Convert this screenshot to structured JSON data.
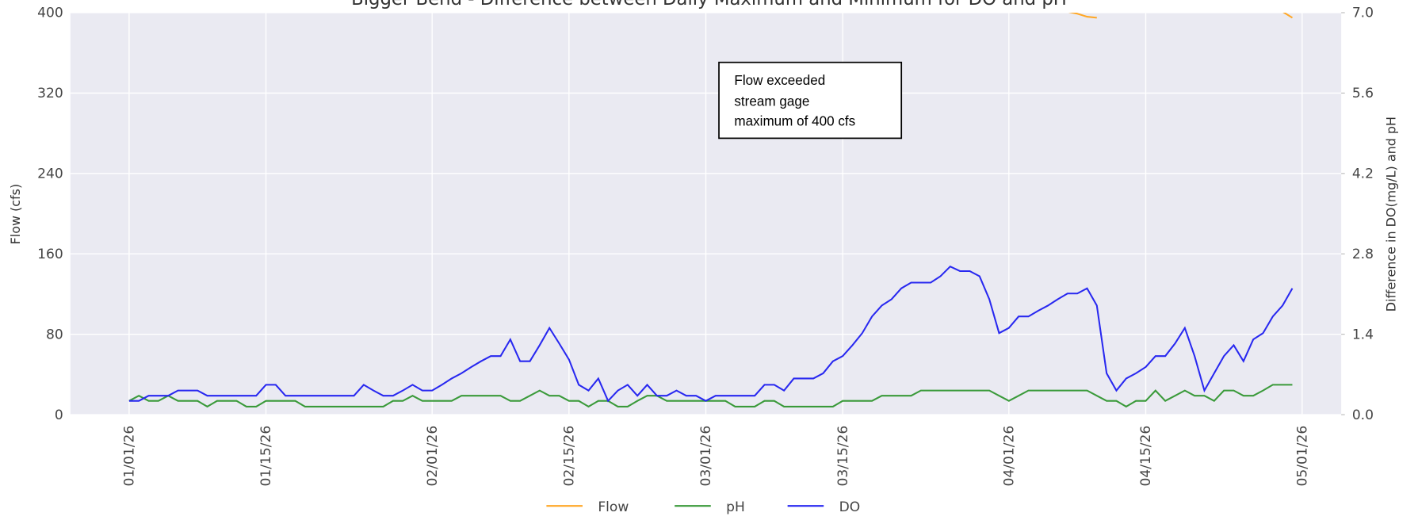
{
  "chart_data": {
    "type": "line",
    "title": "Bigger Bend - Difference between Daily Maximum and Minimum for DO and pH",
    "ylabel": "Flow (cfs)",
    "y2label": "Difference in DO(mg/L) and pH",
    "annotation": [
      "Flow exceeded",
      "stream gage",
      "maximum of 400 cfs"
    ],
    "x": [
      "01/01/26",
      "01/02/26",
      "01/03/26",
      "01/04/26",
      "01/05/26",
      "01/06/26",
      "01/07/26",
      "01/08/26",
      "01/09/26",
      "01/10/26",
      "01/11/26",
      "01/12/26",
      "01/13/26",
      "01/14/26",
      "01/15/26",
      "01/16/26",
      "01/17/26",
      "01/18/26",
      "01/19/26",
      "01/20/26",
      "01/21/26",
      "01/22/26",
      "01/23/26",
      "01/24/26",
      "01/25/26",
      "01/26/26",
      "01/27/26",
      "01/28/26",
      "01/29/26",
      "01/30/26",
      "01/31/26",
      "02/01/26",
      "02/02/26",
      "02/03/26",
      "02/04/26",
      "02/05/26",
      "02/06/26",
      "02/07/26",
      "02/08/26",
      "02/09/26",
      "02/10/26",
      "02/11/26",
      "02/12/26",
      "02/13/26",
      "02/14/26",
      "02/15/26",
      "02/16/26",
      "02/17/26",
      "02/18/26",
      "02/19/26",
      "02/20/26",
      "02/21/26",
      "02/22/26",
      "02/23/26",
      "02/24/26",
      "02/25/26",
      "02/26/26",
      "02/27/26",
      "02/28/26",
      "03/01/26",
      "03/02/26",
      "03/03/26",
      "03/04/26",
      "03/05/26",
      "03/06/26",
      "03/07/26",
      "03/08/26",
      "03/09/26",
      "03/10/26",
      "03/11/26",
      "03/12/26",
      "03/13/26",
      "03/14/26",
      "03/15/26",
      "03/16/26",
      "03/17/26",
      "03/18/26",
      "03/19/26",
      "03/20/26",
      "03/21/26",
      "03/22/26",
      "03/23/26",
      "03/24/26",
      "03/25/26",
      "03/26/26",
      "03/27/26",
      "03/28/26",
      "03/29/26",
      "03/30/26",
      "03/31/26",
      "04/01/26",
      "04/02/26",
      "04/03/26",
      "04/04/26",
      "04/05/26",
      "04/06/26",
      "04/07/26",
      "04/08/26",
      "04/09/26",
      "04/10/26",
      "04/11/26",
      "04/12/26",
      "04/13/26",
      "04/14/26",
      "04/15/26",
      "04/16/26",
      "04/17/26",
      "04/18/26",
      "04/19/26",
      "04/20/26",
      "04/21/26",
      "04/22/26",
      "04/23/26",
      "04/24/26",
      "04/25/26",
      "04/26/26",
      "04/27/26",
      "04/28/26",
      "04/29/26",
      "04/30/26"
    ],
    "series": [
      {
        "name": "Flow",
        "color": "#ffa726",
        "axis": "y",
        "values": [
          null,
          null,
          null,
          null,
          null,
          null,
          null,
          null,
          null,
          null,
          null,
          null,
          null,
          null,
          null,
          null,
          null,
          null,
          null,
          null,
          null,
          null,
          null,
          null,
          null,
          null,
          null,
          null,
          null,
          null,
          null,
          null,
          null,
          null,
          null,
          null,
          null,
          null,
          null,
          null,
          null,
          null,
          null,
          null,
          null,
          null,
          null,
          null,
          null,
          null,
          null,
          null,
          null,
          null,
          null,
          null,
          null,
          null,
          null,
          null,
          null,
          null,
          null,
          null,
          null,
          null,
          null,
          null,
          null,
          null,
          null,
          null,
          null,
          null,
          null,
          null,
          null,
          null,
          null,
          null,
          null,
          null,
          null,
          null,
          null,
          null,
          null,
          null,
          null,
          null,
          null,
          null,
          null,
          null,
          null,
          null,
          401,
          399,
          396,
          395,
          null,
          null,
          null,
          null,
          null,
          null,
          null,
          null,
          null,
          null,
          null,
          null,
          null,
          null,
          null,
          null,
          null,
          null,
          401,
          395
        ]
      },
      {
        "name": "pH",
        "color": "#3a9a3a",
        "axis": "y2",
        "values": [
          0.24,
          0.33,
          0.24,
          0.24,
          0.33,
          0.24,
          0.24,
          0.24,
          0.14,
          0.24,
          0.24,
          0.24,
          0.14,
          0.14,
          0.24,
          0.24,
          0.24,
          0.24,
          0.14,
          0.14,
          0.14,
          0.14,
          0.14,
          0.14,
          0.14,
          0.14,
          0.14,
          0.24,
          0.24,
          0.33,
          0.24,
          0.24,
          0.24,
          0.24,
          0.33,
          0.33,
          0.33,
          0.33,
          0.33,
          0.24,
          0.24,
          0.33,
          0.42,
          0.33,
          0.33,
          0.24,
          0.24,
          0.14,
          0.24,
          0.24,
          0.14,
          0.14,
          0.24,
          0.33,
          0.33,
          0.24,
          0.24,
          0.24,
          0.24,
          0.24,
          0.24,
          0.24,
          0.14,
          0.14,
          0.14,
          0.24,
          0.24,
          0.14,
          0.14,
          0.14,
          0.14,
          0.14,
          0.14,
          0.24,
          0.24,
          0.24,
          0.24,
          0.33,
          0.33,
          0.33,
          0.33,
          0.42,
          0.42,
          0.42,
          0.42,
          0.42,
          0.42,
          0.42,
          0.42,
          0.33,
          0.24,
          0.33,
          0.42,
          0.42,
          0.42,
          0.42,
          0.42,
          0.42,
          0.42,
          0.33,
          0.24,
          0.24,
          0.14,
          0.24,
          0.24,
          0.42,
          0.24,
          0.33,
          0.42,
          0.33,
          0.33,
          0.24,
          0.42,
          0.42,
          0.33,
          0.33,
          0.42,
          0.52,
          0.52,
          0.52
        ]
      },
      {
        "name": "DO",
        "color": "#2828f0",
        "axis": "y2",
        "values": [
          0.24,
          0.24,
          0.33,
          0.33,
          0.33,
          0.42,
          0.42,
          0.42,
          0.33,
          0.33,
          0.33,
          0.33,
          0.33,
          0.33,
          0.52,
          0.52,
          0.33,
          0.33,
          0.33,
          0.33,
          0.33,
          0.33,
          0.33,
          0.33,
          0.52,
          0.42,
          0.33,
          0.33,
          0.42,
          0.52,
          0.42,
          0.42,
          0.52,
          0.63,
          0.72,
          0.83,
          0.93,
          1.02,
          1.02,
          1.31,
          0.93,
          0.93,
          1.21,
          1.51,
          1.24,
          0.96,
          0.52,
          0.42,
          0.63,
          0.24,
          0.42,
          0.52,
          0.33,
          0.52,
          0.33,
          0.33,
          0.42,
          0.33,
          0.33,
          0.24,
          0.33,
          0.33,
          0.33,
          0.33,
          0.33,
          0.52,
          0.52,
          0.42,
          0.63,
          0.63,
          0.63,
          0.72,
          0.93,
          1.02,
          1.21,
          1.42,
          1.71,
          1.9,
          2.01,
          2.2,
          2.3,
          2.3,
          2.3,
          2.41,
          2.58,
          2.5,
          2.5,
          2.41,
          2.01,
          1.42,
          1.51,
          1.71,
          1.71,
          1.81,
          1.9,
          2.01,
          2.11,
          2.11,
          2.2,
          1.9,
          0.72,
          0.42,
          0.63,
          0.72,
          0.83,
          1.02,
          1.02,
          1.24,
          1.51,
          1.02,
          0.42,
          0.72,
          1.02,
          1.21,
          0.93,
          1.31,
          1.42,
          1.71,
          1.9,
          2.2
        ]
      }
    ],
    "xlim": [
      "12/26/25",
      "05/05/26"
    ],
    "xticks": [
      "01/01/26",
      "01/15/26",
      "02/01/26",
      "02/15/26",
      "03/01/26",
      "03/15/26",
      "04/01/26",
      "04/15/26",
      "05/01/26"
    ],
    "ylim": [
      0,
      400
    ],
    "yticks": [
      0,
      80,
      160,
      240,
      320,
      400
    ],
    "y2lim": [
      0,
      7
    ],
    "y2ticks": [
      {
        "value": 0,
        "label": "0.0"
      },
      1.4,
      2.8,
      4.2,
      5.6,
      {
        "value": 7,
        "label": "7.0"
      }
    ],
    "grid": true,
    "legend": "bottom"
  }
}
